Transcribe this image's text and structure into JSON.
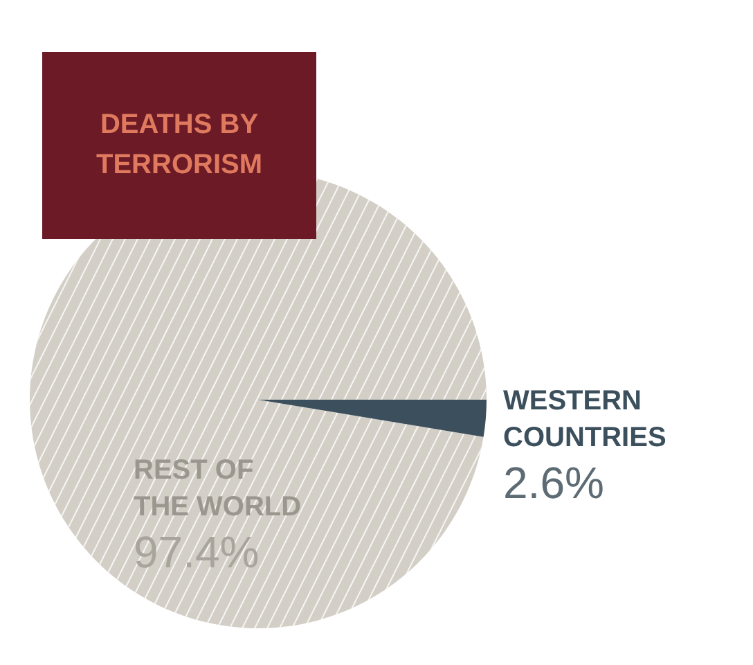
{
  "chart_data": {
    "type": "pie",
    "title": "DEATHS BY TERRORISM",
    "categories": [
      "REST OF THE WORLD",
      "WESTERN COUNTRIES"
    ],
    "values": [
      97.4,
      2.6
    ],
    "colors": [
      "#d3cfc6",
      "#3b4f5c"
    ],
    "value_labels": [
      "97.4%",
      "2.6%"
    ]
  }
}
